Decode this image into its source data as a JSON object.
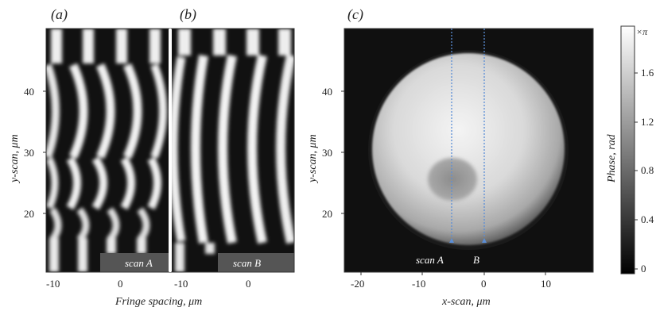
{
  "figure": {
    "panels": [
      {
        "id": "a",
        "label": "(a)",
        "scan_label": "scan A"
      },
      {
        "id": "b",
        "label": "(b)",
        "scan_label": "scan B"
      },
      {
        "id": "c",
        "label": "(c)",
        "scan_labels": [
          "scan A",
          "B"
        ]
      }
    ],
    "axes": {
      "fringe_xlabel": "Fringe spacing, μm",
      "ylabel": "y-scan, μm",
      "c_xlabel": "x-scan, μm",
      "colorbar_label": "Phase, rad",
      "colorbar_unit": "×π"
    },
    "ticks": {
      "fringe_x": [
        "-10",
        "0"
      ],
      "y": [
        "40",
        "30",
        "20"
      ],
      "c_x": [
        "-20",
        "-10",
        "0",
        "10"
      ],
      "colorbar": [
        "1.6",
        "1.2",
        "0.8",
        "0.4",
        "0"
      ]
    }
  }
}
